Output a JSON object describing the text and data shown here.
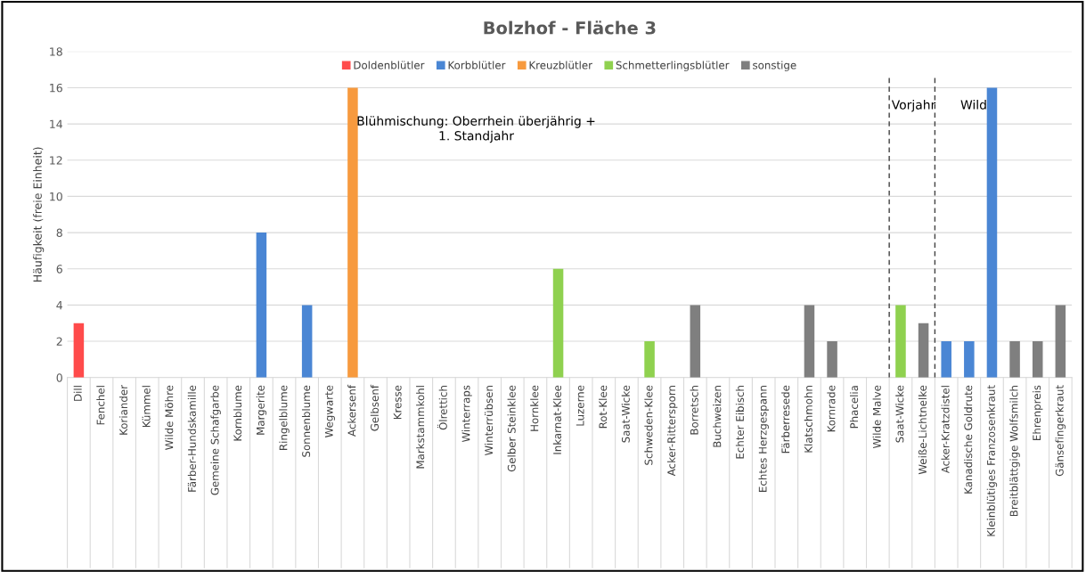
{
  "chart_data": {
    "type": "bar",
    "title": "Bolzhof - Fläche 3",
    "ylabel": "Häufigkeit (freie Einheit)",
    "categories": [
      "Dill",
      "Fenchel",
      "Koriander",
      "Kümmel",
      "Wilde Möhre",
      "Färber-Hundskamille",
      "Gemeine Schafgarbe",
      "Kornblume",
      "Margerite",
      "Ringelblume",
      "Sonnenblume",
      "Wegwarte",
      "Ackersenf",
      "Gelbsenf",
      "Kresse",
      "Markstammkohl",
      "Ölrettich",
      "Winterraps",
      "Winterrübsen",
      "Gelber Steinklee",
      "Hornklee",
      "Inkarnat-Klee",
      "Luzerne",
      "Rot-Klee",
      "Saat-Wicke",
      "Schweden-Klee",
      "Acker-Rittersporn",
      "Borretsch",
      "Buchweizen",
      "Echter Eibisch",
      "Echtes Herzgespann",
      "Färberresede",
      "Klatschmohn",
      "Kornrade",
      "Phacelia",
      "Wilde Malve",
      "Saat-Wicke",
      "Weiße-Lichtnelke",
      "Acker-Kratzdistel",
      "Kanadische Goldrute",
      "Kleinblütiges Franzosenkraut",
      "Breitblättgige Wolfsmilch",
      "Ehrenpreis",
      "Gänsefingerkraut"
    ],
    "series": [
      {
        "name": "Doldenblütler",
        "color": "#ff4b4b",
        "values": [
          3,
          null,
          null,
          null,
          null,
          null,
          null,
          null,
          null,
          null,
          null,
          null,
          null,
          null,
          null,
          null,
          null,
          null,
          null,
          null,
          null,
          null,
          null,
          null,
          null,
          null,
          null,
          null,
          null,
          null,
          null,
          null,
          null,
          null,
          null,
          null,
          null,
          null,
          null,
          null,
          null,
          null,
          null,
          null
        ]
      },
      {
        "name": "Korbblütler",
        "color": "#4a86d4",
        "values": [
          null,
          null,
          null,
          null,
          null,
          null,
          null,
          null,
          8,
          null,
          4,
          null,
          null,
          null,
          null,
          null,
          null,
          null,
          null,
          null,
          null,
          null,
          null,
          null,
          null,
          null,
          null,
          null,
          null,
          null,
          null,
          null,
          null,
          null,
          null,
          null,
          null,
          null,
          2,
          2,
          16,
          null,
          null,
          null
        ]
      },
      {
        "name": "Kreuzblütler",
        "color": "#f79a3e",
        "values": [
          null,
          null,
          null,
          null,
          null,
          null,
          null,
          null,
          null,
          null,
          null,
          null,
          16,
          null,
          null,
          null,
          null,
          null,
          null,
          null,
          null,
          null,
          null,
          null,
          null,
          null,
          null,
          null,
          null,
          null,
          null,
          null,
          null,
          null,
          null,
          null,
          null,
          null,
          null,
          null,
          null,
          null,
          null,
          null
        ]
      },
      {
        "name": "Schmetterlingsblütler",
        "color": "#8fd14f",
        "values": [
          null,
          null,
          null,
          null,
          null,
          null,
          null,
          null,
          null,
          null,
          null,
          null,
          null,
          null,
          null,
          null,
          null,
          null,
          null,
          null,
          null,
          6,
          null,
          null,
          null,
          2,
          null,
          null,
          null,
          null,
          null,
          null,
          null,
          null,
          null,
          null,
          4,
          null,
          null,
          null,
          null,
          null,
          null,
          null
        ]
      },
      {
        "name": "sonstige",
        "color": "#7f7f7f",
        "values": [
          null,
          null,
          null,
          null,
          null,
          null,
          null,
          null,
          null,
          null,
          null,
          null,
          null,
          null,
          null,
          null,
          null,
          null,
          null,
          null,
          null,
          null,
          null,
          null,
          null,
          null,
          null,
          4,
          null,
          null,
          null,
          null,
          4,
          2,
          null,
          null,
          null,
          3,
          null,
          null,
          null,
          2,
          2,
          4
        ]
      }
    ],
    "ylim": [
      0,
      18
    ],
    "yticks": [
      0,
      2,
      4,
      6,
      8,
      10,
      12,
      14,
      16,
      18
    ],
    "grid": "y",
    "legend": "top",
    "annotations": [
      "Blühmischung: Oberrhein überjährig +\n1. Standjahr",
      "Vorjahr",
      "Wild"
    ]
  }
}
